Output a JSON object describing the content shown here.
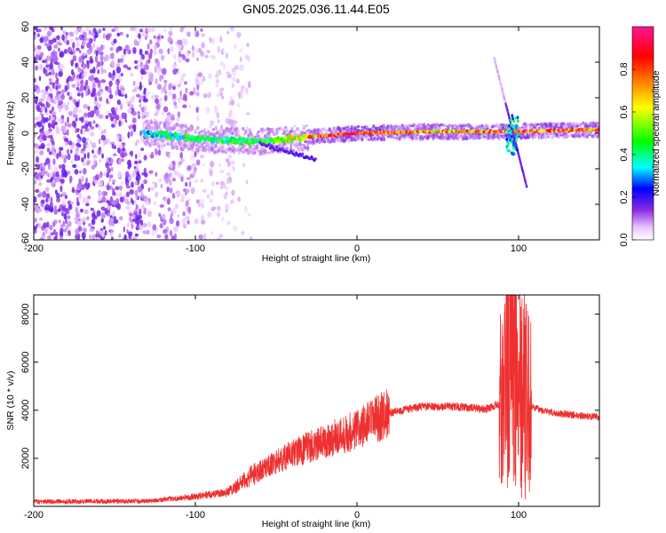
{
  "title": "GN05.2025.036.11.44.E05",
  "chart_data": [
    {
      "type": "heatmap",
      "name": "spectrogram",
      "xlabel": "Height of straight line (km)",
      "ylabel": "Frequency (Hz)",
      "xlim": [
        -200,
        150
      ],
      "ylim": [
        -60,
        60
      ],
      "xticks": [
        -200,
        -100,
        0,
        100
      ],
      "yticks": [
        -60,
        -40,
        -20,
        0,
        20,
        40,
        60
      ],
      "colorbar": {
        "label": "Normalized spectral amplitude",
        "range": [
          0,
          1
        ],
        "ticks": [
          "0.0",
          "0.2",
          "0.4",
          "0.6",
          "0.8"
        ],
        "colors": [
          "#ffffff",
          "#e7c2ff",
          "#8a2be2",
          "#0000ff",
          "#00ffff",
          "#00ff00",
          "#ffff00",
          "#ff8000",
          "#ff0000",
          "#ff1493"
        ]
      },
      "features": {
        "noise_region_km": [
          -200,
          -70
        ],
        "main_trace": [
          {
            "x": -130,
            "y": 0,
            "v": 0.35
          },
          {
            "x": -100,
            "y": -3,
            "v": 0.45
          },
          {
            "x": -60,
            "y": -5,
            "v": 0.45
          },
          {
            "x": -30,
            "y": -2,
            "v": 0.7
          },
          {
            "x": 0,
            "y": 0,
            "v": 0.9
          },
          {
            "x": 50,
            "y": 1,
            "v": 0.7
          },
          {
            "x": 100,
            "y": 1,
            "v": 0.85
          },
          {
            "x": 150,
            "y": 2,
            "v": 0.8
          }
        ],
        "descending_streak": [
          {
            "x": 85,
            "y": 42
          },
          {
            "x": 105,
            "y": -30
          }
        ]
      }
    },
    {
      "type": "line",
      "name": "snr",
      "xlabel": "Height of straight line (km)",
      "ylabel": "SNR (10 * v/v)",
      "xlim": [
        -200,
        150
      ],
      "ylim": [
        0,
        8800
      ],
      "xticks": [
        -200,
        -100,
        0,
        100
      ],
      "yticks": [
        2000,
        4000,
        6000,
        8000
      ],
      "color": "#ee3030",
      "envelope": [
        {
          "x": -200,
          "y": 200
        },
        {
          "x": -130,
          "y": 220
        },
        {
          "x": -100,
          "y": 400
        },
        {
          "x": -80,
          "y": 600
        },
        {
          "x": -60,
          "y": 1500
        },
        {
          "x": -40,
          "y": 2200
        },
        {
          "x": -20,
          "y": 2700
        },
        {
          "x": 0,
          "y": 3200
        },
        {
          "x": 20,
          "y": 3900
        },
        {
          "x": 40,
          "y": 4150
        },
        {
          "x": 60,
          "y": 4150
        },
        {
          "x": 80,
          "y": 4050
        },
        {
          "x": 90,
          "y": 4300
        },
        {
          "x": 95,
          "y": 7000
        },
        {
          "x": 100,
          "y": 6000
        },
        {
          "x": 105,
          "y": 4200
        },
        {
          "x": 120,
          "y": 3900
        },
        {
          "x": 150,
          "y": 3700
        }
      ]
    }
  ]
}
